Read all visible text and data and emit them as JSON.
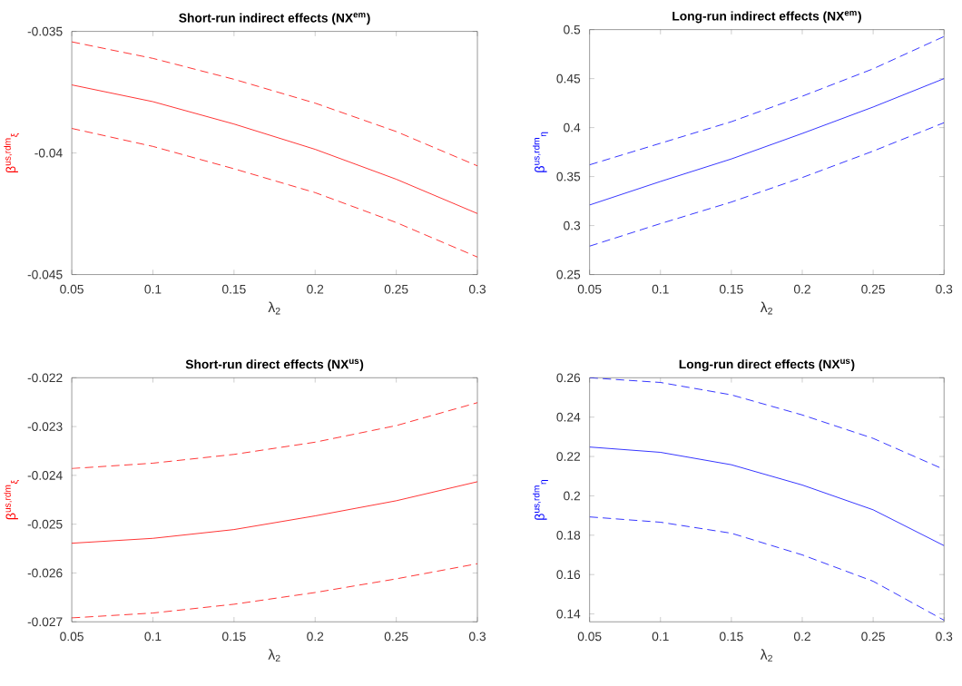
{
  "chart_data": [
    {
      "type": "line",
      "title": "Short-run indirect effects (NX$^{em}$)",
      "xlabel": "λ$_{2}$",
      "ylabel": "β$^{us,rdm}$$_{ξ}$",
      "x": [
        0.05,
        0.1,
        0.15,
        0.2,
        0.25,
        0.3
      ],
      "xlim": [
        0.05,
        0.3
      ],
      "ylim": [
        -0.045,
        -0.035
      ],
      "xticks": [
        0.05,
        0.1,
        0.15,
        0.2,
        0.25,
        0.3
      ],
      "yticks": [
        -0.045,
        -0.04,
        -0.035
      ],
      "series": [
        {
          "color": "#ff0000",
          "line_style": "dashed",
          "values": [
            -0.03543,
            -0.03611,
            -0.03697,
            -0.03795,
            -0.03912,
            -0.04053
          ]
        },
        {
          "color": "#ff0000",
          "line_style": "solid",
          "values": [
            -0.0372,
            -0.03789,
            -0.03881,
            -0.03985,
            -0.04108,
            -0.04249
          ]
        },
        {
          "color": "#ff0000",
          "line_style": "dashed",
          "values": [
            -0.03899,
            -0.03973,
            -0.04065,
            -0.04163,
            -0.04286,
            -0.04428
          ]
        }
      ]
    },
    {
      "type": "line",
      "title": "Long-run indirect effects (NX$^{em}$)",
      "xlabel": "λ$_{2}$",
      "ylabel": "β$^{us,rdm}$$_{η}$",
      "x": [
        0.05,
        0.1,
        0.15,
        0.2,
        0.25,
        0.3
      ],
      "xlim": [
        0.05,
        0.3
      ],
      "ylim": [
        0.25,
        0.5
      ],
      "xticks": [
        0.05,
        0.1,
        0.15,
        0.2,
        0.25,
        0.3
      ],
      "yticks": [
        0.25,
        0.3,
        0.35,
        0.4,
        0.45,
        0.5
      ],
      "series": [
        {
          "color": "#0000ff",
          "line_style": "dashed",
          "values": [
            0.362,
            0.384,
            0.406,
            0.432,
            0.46,
            0.493
          ]
        },
        {
          "color": "#0000ff",
          "line_style": "solid",
          "values": [
            0.321,
            0.345,
            0.368,
            0.394,
            0.421,
            0.45
          ]
        },
        {
          "color": "#0000ff",
          "line_style": "dashed",
          "values": [
            0.279,
            0.302,
            0.324,
            0.349,
            0.376,
            0.405
          ]
        }
      ]
    },
    {
      "type": "line",
      "title": "Short-run direct effects (NX$^{us}$)",
      "xlabel": "λ$_{2}$",
      "ylabel": "β$^{us,rdm}$$_{ξ}$",
      "x": [
        0.05,
        0.1,
        0.15,
        0.2,
        0.25,
        0.3
      ],
      "xlim": [
        0.05,
        0.3
      ],
      "ylim": [
        -0.027,
        -0.022
      ],
      "xticks": [
        0.05,
        0.1,
        0.15,
        0.2,
        0.25,
        0.3
      ],
      "yticks": [
        -0.027,
        -0.026,
        -0.025,
        -0.024,
        -0.023,
        -0.022
      ],
      "series": [
        {
          "color": "#ff0000",
          "line_style": "dashed",
          "values": [
            -0.02386,
            -0.02375,
            -0.02357,
            -0.02332,
            -0.02298,
            -0.02251
          ]
        },
        {
          "color": "#ff0000",
          "line_style": "solid",
          "values": [
            -0.02539,
            -0.02529,
            -0.02511,
            -0.02483,
            -0.02452,
            -0.02413
          ]
        },
        {
          "color": "#ff0000",
          "line_style": "dashed",
          "values": [
            -0.02692,
            -0.02682,
            -0.02664,
            -0.0264,
            -0.02612,
            -0.02581
          ]
        }
      ]
    },
    {
      "type": "line",
      "title": "Long-run direct effects (NX$^{us}$)",
      "xlabel": "λ$_{2}$",
      "ylabel": "β$^{us,rdm}$$_{η}$",
      "x": [
        0.05,
        0.1,
        0.15,
        0.2,
        0.25,
        0.3
      ],
      "xlim": [
        0.05,
        0.3
      ],
      "ylim": [
        0.136,
        0.26
      ],
      "xticks": [
        0.05,
        0.1,
        0.15,
        0.2,
        0.25,
        0.3
      ],
      "yticks": [
        0.14,
        0.16,
        0.18,
        0.2,
        0.22,
        0.24,
        0.26
      ],
      "series": [
        {
          "color": "#0000ff",
          "line_style": "dashed",
          "values": [
            0.26,
            0.2576,
            0.2513,
            0.2411,
            0.2292,
            0.2134
          ]
        },
        {
          "color": "#0000ff",
          "line_style": "solid",
          "values": [
            0.2248,
            0.2221,
            0.2158,
            0.2055,
            0.1929,
            0.1747
          ]
        },
        {
          "color": "#0000ff",
          "line_style": "dashed",
          "values": [
            0.1893,
            0.1866,
            0.181,
            0.17,
            0.1566,
            0.1368
          ]
        }
      ]
    }
  ]
}
